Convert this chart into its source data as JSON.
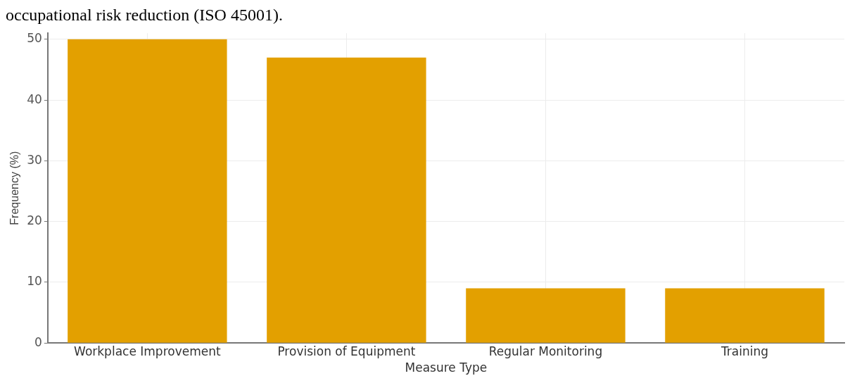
{
  "chart_data": {
    "type": "bar",
    "xlabel": "Measure Type",
    "ylabel": "Frequency (%)",
    "annotations": [
      "occupational risk reduction (ISO 45001)."
    ],
    "categories": [
      "Workplace Improvement",
      "Provision of Equipment",
      "Regular Monitoring",
      "Training"
    ],
    "values": [
      50,
      47,
      9,
      9
    ],
    "color": "#e3a000",
    "ylim": [
      0,
      51
    ],
    "yticks": [
      0,
      10,
      20,
      30,
      40,
      50
    ],
    "grid": true,
    "legend": false
  }
}
